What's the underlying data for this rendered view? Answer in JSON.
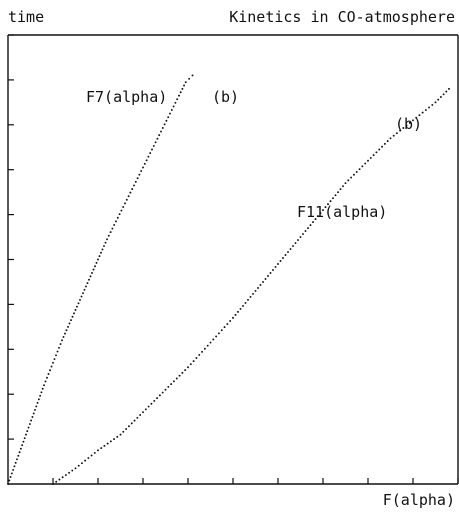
{
  "chart_data": {
    "type": "scatter",
    "title": "Kinetics in CO-atmosphere",
    "xlabel": "F(alpha)",
    "ylabel": "time",
    "xlim": [
      0,
      10
    ],
    "ylim": [
      0,
      10
    ],
    "grid": false,
    "legend": "none",
    "x_ticks": [
      1,
      2,
      3,
      4,
      5,
      6,
      7,
      8,
      9,
      10
    ],
    "y_ticks": [
      1,
      2,
      3,
      4,
      5,
      6,
      7,
      8,
      9,
      10
    ],
    "series": [
      {
        "x": [
          0.0,
          0.2,
          0.4,
          0.6,
          0.8,
          1.0,
          1.2,
          1.4,
          1.6,
          1.8,
          2.0,
          2.2,
          2.4,
          2.6,
          2.8,
          3.0,
          3.2,
          3.4,
          3.6,
          3.8,
          3.95,
          4.1
        ],
        "y": [
          0.0,
          0.55,
          1.1,
          1.65,
          2.2,
          2.7,
          3.2,
          3.65,
          4.1,
          4.55,
          5.0,
          5.45,
          5.85,
          6.25,
          6.65,
          7.05,
          7.45,
          7.85,
          8.25,
          8.65,
          8.95,
          9.1
        ]
      },
      {
        "x": [
          1.0,
          1.5,
          2.0,
          2.5,
          3.0,
          3.5,
          4.0,
          4.5,
          5.0,
          5.5,
          6.0,
          6.5,
          7.0,
          7.5,
          8.0,
          8.5,
          9.0,
          9.5,
          9.8
        ],
        "y": [
          0.0,
          0.35,
          0.75,
          1.1,
          1.6,
          2.1,
          2.6,
          3.15,
          3.7,
          4.3,
          4.9,
          5.5,
          6.1,
          6.7,
          7.2,
          7.7,
          8.1,
          8.5,
          8.8
        ]
      }
    ],
    "annotations": {
      "a": "F7(alpha)",
      "b": "(b)",
      "c": "F11(alpha)",
      "d": "(b)"
    }
  }
}
